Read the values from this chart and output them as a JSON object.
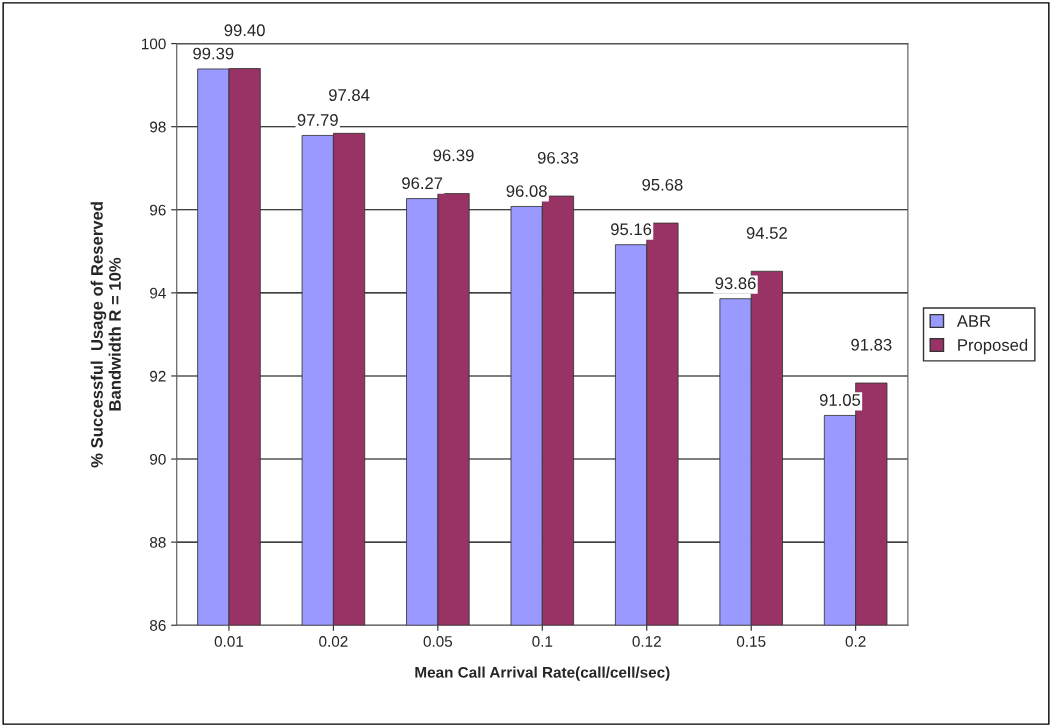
{
  "chart_data": {
    "type": "bar",
    "xlabel": "Mean Call Arrival Rate(call/cell/sec)",
    "ylabel": "% Successful  Usage of Reserved\nBandwidth R = 10%",
    "categories": [
      "0.01",
      "0.02",
      "0.05",
      "0.1",
      "0.12",
      "0.15",
      "0.2"
    ],
    "series": [
      {
        "name": "ABR",
        "color": "#9999ff",
        "values": [
          99.39,
          97.79,
          96.27,
          96.08,
          95.16,
          93.86,
          91.05
        ],
        "value_labels": [
          "99.39",
          "97.79",
          "96.27",
          "96.08",
          "95.16",
          "93.86",
          "91.05"
        ]
      },
      {
        "name": "Proposed",
        "color": "#993366",
        "values": [
          99.4,
          97.84,
          96.39,
          96.33,
          95.68,
          94.52,
          91.83
        ],
        "value_labels": [
          "99.40",
          "97.84",
          "96.39",
          "96.33",
          "95.68",
          "94.52",
          "91.83"
        ]
      }
    ],
    "ylim": [
      86,
      100
    ],
    "yticks": [
      86,
      88,
      90,
      92,
      94,
      96,
      98,
      100
    ],
    "grid": "y",
    "legend": "right"
  }
}
